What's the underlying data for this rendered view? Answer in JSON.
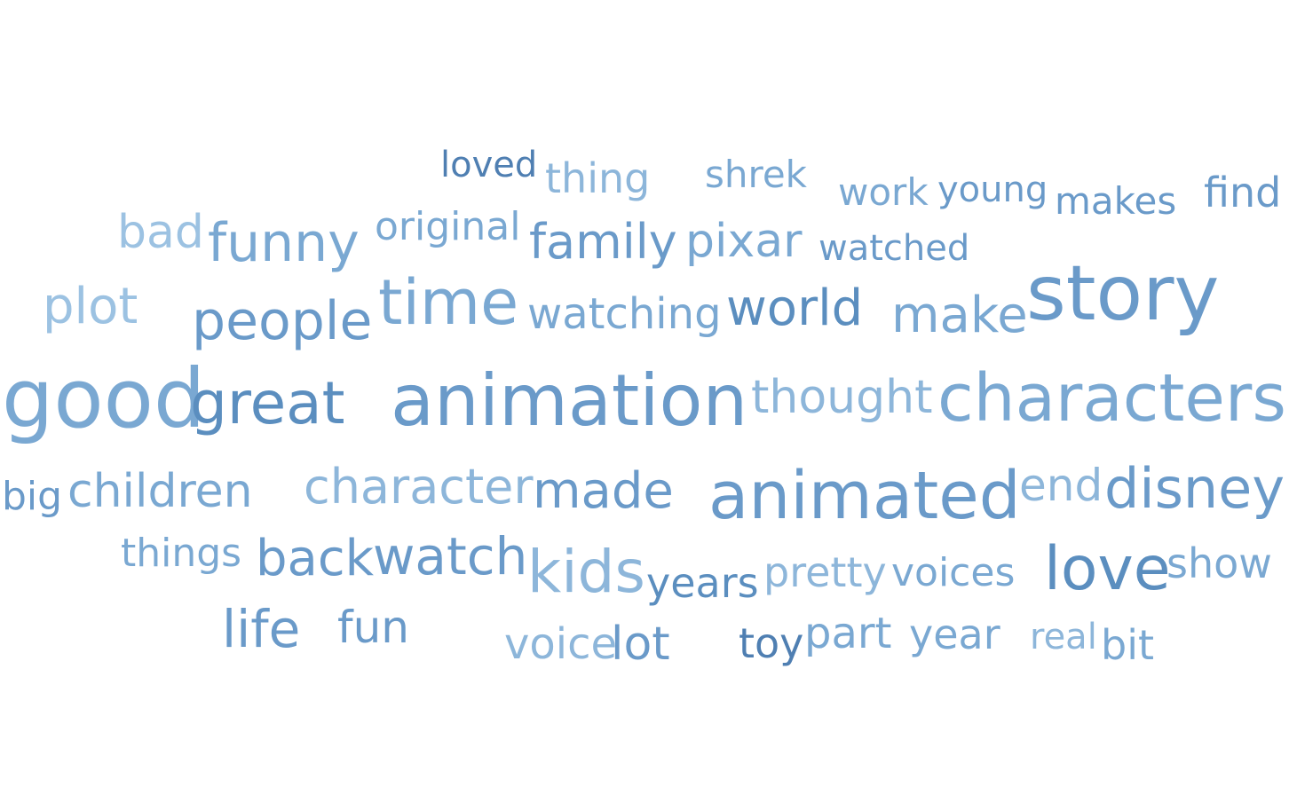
{
  "word_cloud": {
    "palette": [
      "#5b8ebf",
      "#6a9ac9",
      "#7aa8d2",
      "#8db6da",
      "#4f7fb2"
    ],
    "words": [
      {
        "text": "loved",
        "color": "#4f7fb2"
      },
      {
        "text": "thing",
        "color": "#8db6da"
      },
      {
        "text": "shrek",
        "color": "#7aa8d2"
      },
      {
        "text": "work",
        "color": "#7aa8d2"
      },
      {
        "text": "young",
        "color": "#6a9ac9"
      },
      {
        "text": "makes",
        "color": "#6a9ac9"
      },
      {
        "text": "find",
        "color": "#6a9ac9"
      },
      {
        "text": "bad",
        "color": "#9cc2e2"
      },
      {
        "text": "funny",
        "color": "#7aa8d2"
      },
      {
        "text": "original",
        "color": "#7aa8d2"
      },
      {
        "text": "family",
        "color": "#6a9ac9"
      },
      {
        "text": "pixar",
        "color": "#7aa8d2"
      },
      {
        "text": "watched",
        "color": "#6a9ac9"
      },
      {
        "text": "plot",
        "color": "#9cc2e2"
      },
      {
        "text": "people",
        "color": "#6a9ac9"
      },
      {
        "text": "time",
        "color": "#7aa8d2"
      },
      {
        "text": "watching",
        "color": "#7aa8d2"
      },
      {
        "text": "world",
        "color": "#5b8ebf"
      },
      {
        "text": "make",
        "color": "#7aa8d2"
      },
      {
        "text": "story",
        "color": "#6a9ac9"
      },
      {
        "text": "good",
        "color": "#7aa8d2"
      },
      {
        "text": "great",
        "color": "#5b8ebf"
      },
      {
        "text": "animation",
        "color": "#6a9ac9"
      },
      {
        "text": "thought",
        "color": "#8db6da"
      },
      {
        "text": "characters",
        "color": "#7aa8d2"
      },
      {
        "text": "big",
        "color": "#6a9ac9"
      },
      {
        "text": "children",
        "color": "#7aa8d2"
      },
      {
        "text": "character",
        "color": "#8db6da"
      },
      {
        "text": "made",
        "color": "#6a9ac9"
      },
      {
        "text": "animated",
        "color": "#6a9ac9"
      },
      {
        "text": "end",
        "color": "#8db6da"
      },
      {
        "text": "disney",
        "color": "#6a9ac9"
      },
      {
        "text": "things",
        "color": "#7aa8d2"
      },
      {
        "text": "back",
        "color": "#6a9ac9"
      },
      {
        "text": "watch",
        "color": "#6a9ac9"
      },
      {
        "text": "kids",
        "color": "#8db6da"
      },
      {
        "text": "years",
        "color": "#5b8ebf"
      },
      {
        "text": "pretty",
        "color": "#8db6da"
      },
      {
        "text": "voices",
        "color": "#7aa8d2"
      },
      {
        "text": "love",
        "color": "#5b8ebf"
      },
      {
        "text": "show",
        "color": "#7aa8d2"
      },
      {
        "text": "life",
        "color": "#6a9ac9"
      },
      {
        "text": "fun",
        "color": "#6a9ac9"
      },
      {
        "text": "voice",
        "color": "#8db6da"
      },
      {
        "text": "lot",
        "color": "#6a9ac9"
      },
      {
        "text": "toy",
        "color": "#4f7fb2"
      },
      {
        "text": "part",
        "color": "#7aa8d2"
      },
      {
        "text": "year",
        "color": "#7aa8d2"
      },
      {
        "text": "real",
        "color": "#8db6da"
      },
      {
        "text": "bit",
        "color": "#7aa8d2"
      }
    ]
  }
}
